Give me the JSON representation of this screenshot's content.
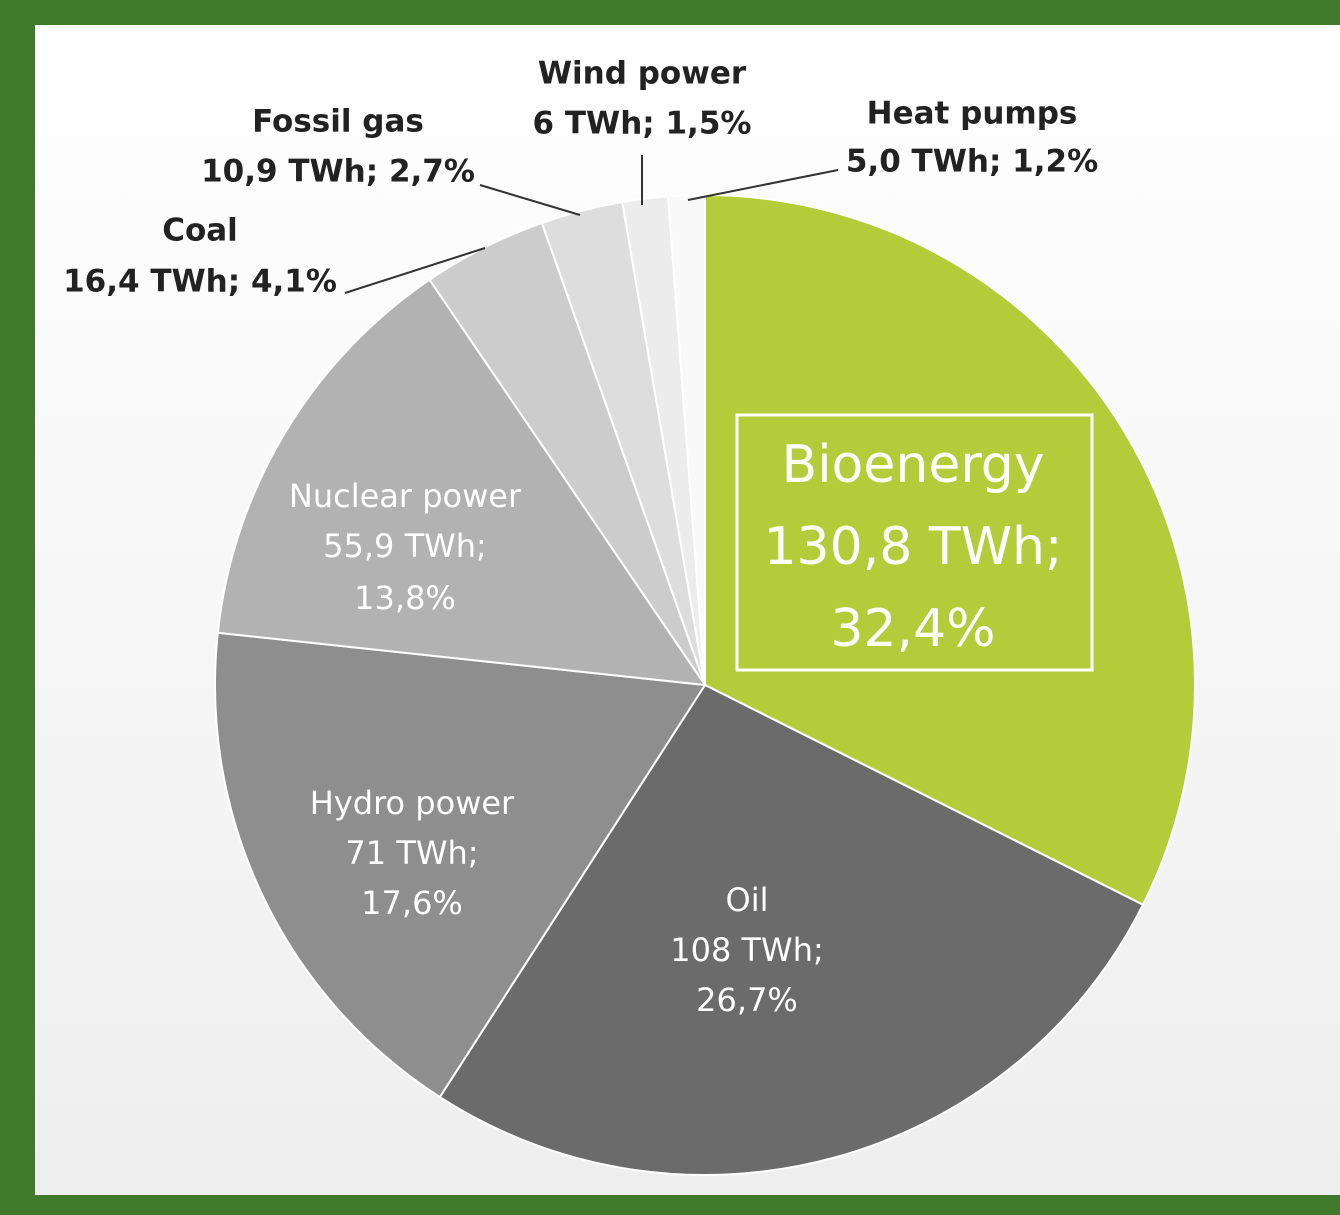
{
  "chart_data": {
    "type": "pie",
    "categories": [
      "Bioenergy",
      "Oil",
      "Hydro power",
      "Nuclear power",
      "Coal",
      "Fossil gas",
      "Wind power",
      "Heat pumps"
    ],
    "values": [
      32.4,
      26.7,
      17.6,
      13.8,
      4.1,
      2.7,
      1.5,
      1.2
    ],
    "value_labels": [
      [
        "130,8 TWh;",
        "32,4%"
      ],
      [
        "108 TWh;",
        "26,7%"
      ],
      [
        "71 TWh;",
        "17,6%"
      ],
      [
        "55,9 TWh;",
        "13,8%"
      ],
      [
        "16,4 TWh; 4,1%"
      ],
      [
        "10,9 TWh; 2,7%"
      ],
      [
        "6 TWh; 1,5%"
      ],
      [
        "5,0 TWh; 1,2%"
      ]
    ],
    "colors": [
      "#b5cc3a",
      "#6b6b6b",
      "#8e8e8e",
      "#b2b2b2",
      "#cccccc",
      "#dddddd",
      "#ececec",
      "#f9f9f9"
    ]
  }
}
